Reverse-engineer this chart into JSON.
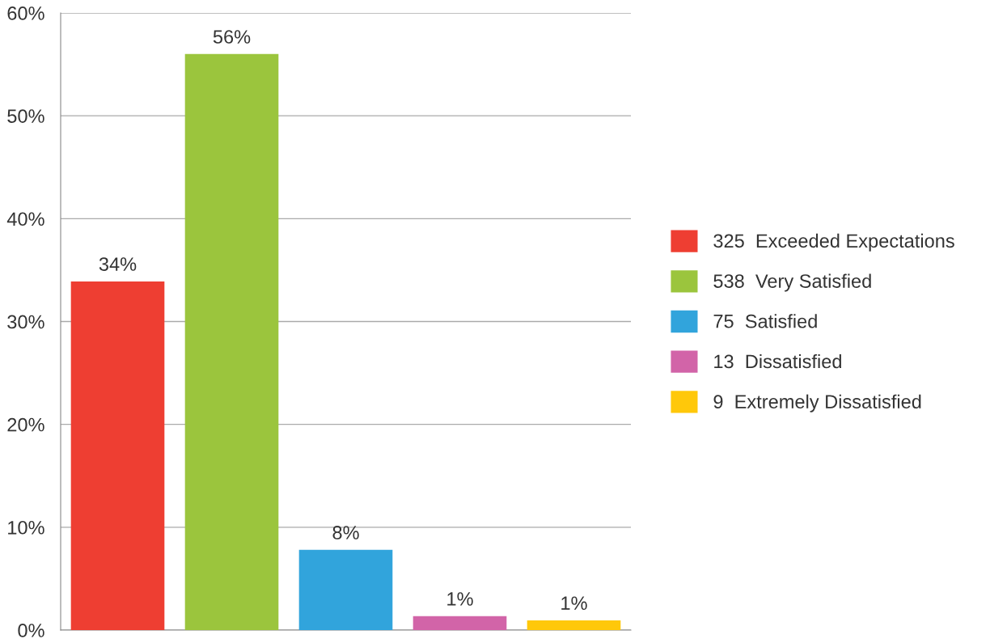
{
  "chart_data": {
    "type": "bar",
    "categories": [
      null,
      null,
      null,
      null,
      null
    ],
    "series": [
      {
        "name": "325  Exceeded Expectations",
        "color": "#ee3e32",
        "values": [
          33.9,
          null,
          null,
          null,
          null
        ],
        "value_labels": [
          "34%",
          null,
          null,
          null,
          null
        ]
      },
      {
        "name": "538  Very Satisfied",
        "color": "#9bc53d",
        "values": [
          null,
          56.0,
          null,
          null,
          null
        ],
        "value_labels": [
          null,
          "56%",
          null,
          null,
          null
        ]
      },
      {
        "name": "75  Satisfied",
        "color": "#31a4dc",
        "values": [
          null,
          null,
          7.8,
          null,
          null
        ],
        "value_labels": [
          null,
          null,
          "8%",
          null,
          null
        ]
      },
      {
        "name": "13  Dissatisfied",
        "color": "#d264a8",
        "values": [
          null,
          null,
          null,
          1.35,
          null
        ],
        "value_labels": [
          null,
          null,
          null,
          "1%",
          null
        ]
      },
      {
        "name": "9  Extremely Dissatisfied",
        "color": "#ffc80a",
        "values": [
          null,
          null,
          null,
          null,
          0.94
        ],
        "value_labels": [
          null,
          null,
          null,
          null,
          "1%"
        ]
      }
    ],
    "ylim": [
      0,
      60
    ],
    "yticks": [
      {
        "value": 0,
        "label": "0%"
      },
      {
        "value": 10,
        "label": "10%"
      },
      {
        "value": 20,
        "label": "20%"
      },
      {
        "value": 30,
        "label": "30%"
      },
      {
        "value": 40,
        "label": "40%"
      },
      {
        "value": 50,
        "label": "50%"
      },
      {
        "value": 60,
        "label": "60%"
      }
    ],
    "grid": "y",
    "legend": "right"
  }
}
